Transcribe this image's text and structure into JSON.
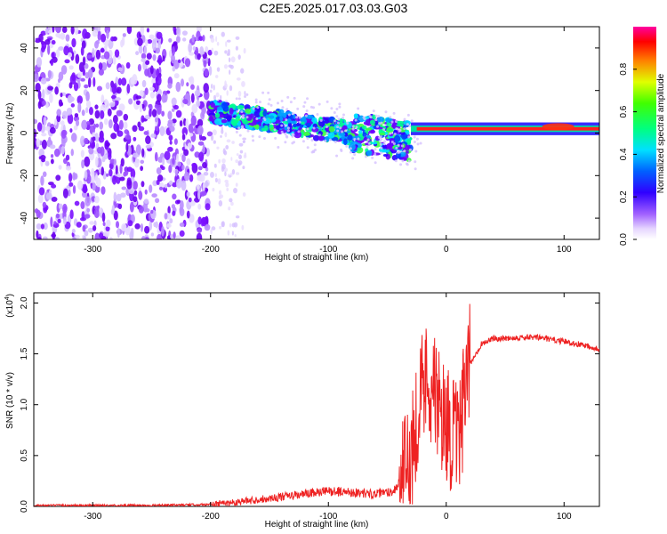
{
  "title": "C2E5.2025.017.03.03.G03",
  "chart_data": [
    {
      "type": "heatmap",
      "xlabel": "Height of straight line (km)",
      "ylabel": "Frequency (Hz)",
      "xlim": [
        -350,
        130
      ],
      "ylim": [
        -50,
        50
      ],
      "xticks": [
        -300,
        -200,
        -100,
        0,
        100
      ],
      "yticks": [
        -40,
        -20,
        0,
        20,
        40
      ],
      "colorbar": {
        "label": "Normalized spectral amplitude",
        "range": [
          0.0,
          1.0
        ],
        "ticks": [
          "0.0",
          "0.2",
          "0.4",
          "0.6",
          "0.8"
        ],
        "colors": [
          "#ffffff",
          "#d8c4ff",
          "#7a00ff",
          "#0000ff",
          "#00c8ff",
          "#00ff60",
          "#c8ff00",
          "#ff8000",
          "#ff0000",
          "#ff00ff"
        ]
      },
      "regions": [
        {
          "x": [
            -350,
            -200
          ],
          "description_free_noise_amplitude": 0.2
        },
        {
          "x": [
            -200,
            -30
          ],
          "peak_frequency_hz": [
            10,
            5,
            0,
            -5
          ],
          "amplitude": 0.5
        },
        {
          "x": [
            -30,
            130
          ],
          "peak_frequency_hz": 2,
          "amplitude": 0.9
        }
      ]
    },
    {
      "type": "line",
      "xlabel": "Height of straight line (km)",
      "ylabel": "SNR (10 * v/v)",
      "scale_label": "(x10",
      "scale_exp": "4",
      "scale_close": ")",
      "xlim": [
        -350,
        130
      ],
      "ylim": [
        0,
        2.1
      ],
      "xticks": [
        -300,
        -200,
        -100,
        0,
        100
      ],
      "yticks": [
        "0.0",
        "0.5",
        "1.0",
        "1.5",
        "2.0"
      ],
      "color": "#ee2222",
      "x": [
        -350,
        -300,
        -250,
        -200,
        -180,
        -150,
        -120,
        -100,
        -80,
        -60,
        -45,
        -35,
        -30,
        -25,
        -20,
        -15,
        -10,
        -5,
        0,
        5,
        10,
        15,
        20,
        30,
        40,
        60,
        80,
        100,
        110,
        120,
        130
      ],
      "y": [
        0.01,
        0.01,
        0.01,
        0.02,
        0.04,
        0.08,
        0.12,
        0.15,
        0.14,
        0.12,
        0.15,
        0.3,
        0.5,
        0.9,
        1.2,
        1.3,
        1.1,
        0.9,
        0.85,
        0.7,
        0.6,
        1.0,
        1.4,
        1.6,
        1.65,
        1.66,
        1.66,
        1.62,
        1.6,
        1.58,
        1.55
      ]
    }
  ]
}
